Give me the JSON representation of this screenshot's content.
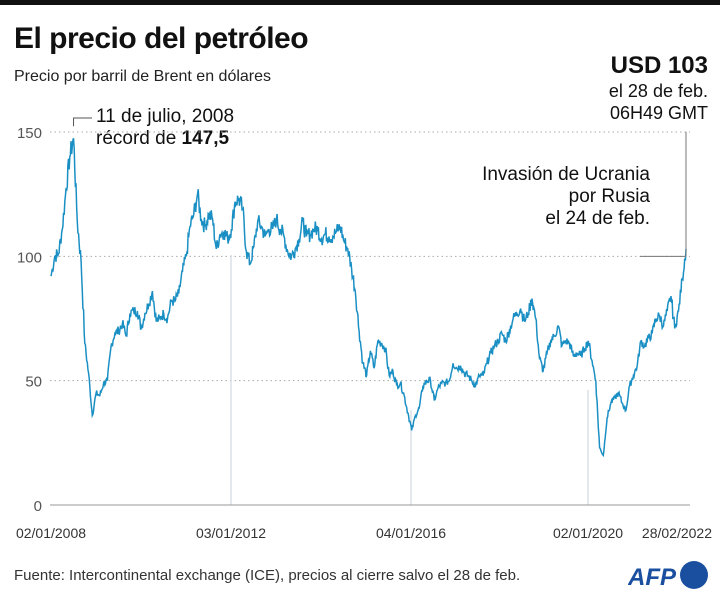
{
  "title": "El precio del petróleo",
  "subtitle": "Precio por barril de Brent en dólares",
  "headline": {
    "value": "USD 103",
    "line1": "el 28 de feb.",
    "line2": "06H49 GMT"
  },
  "annotations": {
    "record": {
      "line1": "11 de julio, 2008",
      "line2_prefix": "récord de ",
      "value": "147,5"
    },
    "invasion": {
      "line1": "Invasión de Ucrania",
      "line2": "por Rusia",
      "line3": "el 24 de feb."
    }
  },
  "source": "Fuente: Intercontinental exchange (ICE), precios  al cierre salvo el 28 de feb.",
  "logo": "AFP",
  "chart_data": {
    "type": "line",
    "title": "El precio del petróleo",
    "ylabel": "",
    "ylim": [
      0,
      150
    ],
    "yticks": [
      "0",
      "50",
      "100",
      "150"
    ],
    "xticks": [
      "02/01/2008",
      "03/01/2012",
      "04/01/2016",
      "02/01/2020",
      "28/02/2022"
    ],
    "grid": "horizontal dotted",
    "color": "#1a8fc4",
    "start_year": 2008,
    "monthly_values": [
      92,
      100,
      101,
      111,
      127,
      140,
      147.5,
      114,
      98,
      65,
      53,
      36,
      45,
      44,
      49,
      50,
      64,
      69,
      70,
      73,
      68,
      77,
      78,
      78,
      71,
      77,
      81,
      86,
      74,
      75,
      77,
      75,
      82,
      82,
      85,
      94,
      100,
      112,
      117,
      125,
      115,
      112,
      117,
      115,
      103,
      109,
      110,
      107,
      111,
      122,
      123,
      119,
      102,
      97,
      104,
      114,
      112,
      108,
      111,
      111,
      115,
      111,
      108,
      102,
      100,
      103,
      107,
      114,
      108,
      109,
      111,
      111,
      107,
      109,
      108,
      108,
      110,
      112,
      106,
      103,
      95,
      86,
      70,
      57,
      52,
      62,
      55,
      66,
      65,
      63,
      52,
      54,
      48,
      49,
      44,
      37,
      30,
      36,
      39,
      48,
      50,
      50,
      42,
      47,
      49,
      49,
      50,
      57,
      55,
      56,
      53,
      52,
      50,
      48,
      52,
      52,
      57,
      61,
      64,
      66,
      69,
      66,
      70,
      75,
      77,
      79,
      74,
      77,
      83,
      75,
      59,
      54,
      61,
      66,
      68,
      72,
      64,
      66,
      65,
      60,
      61,
      60,
      63,
      66,
      58,
      50,
      23,
      20,
      35,
      41,
      43,
      45,
      41,
      38,
      48,
      52,
      56,
      66,
      64,
      67,
      69,
      75,
      76,
      72,
      78,
      84,
      71,
      78,
      91,
      103
    ]
  }
}
